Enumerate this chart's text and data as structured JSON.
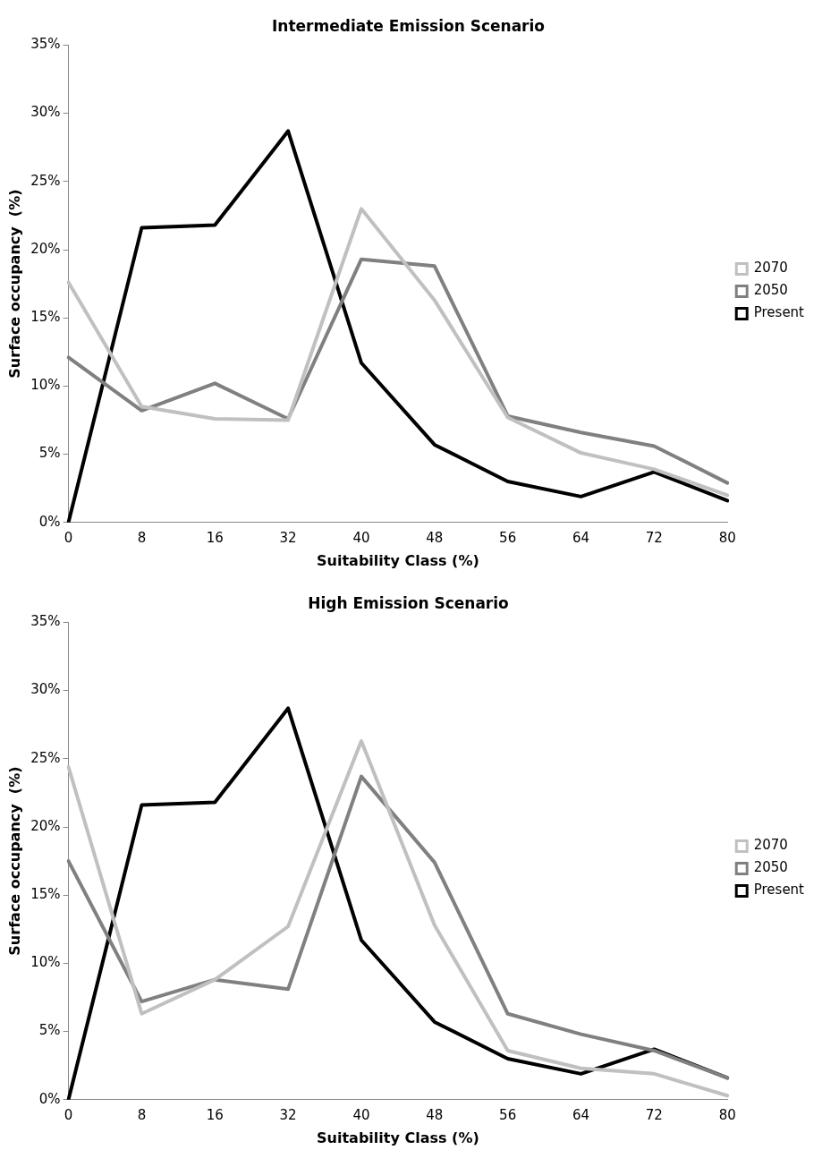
{
  "chart_data": [
    {
      "type": "line",
      "title": "Intermediate Emission Scenario",
      "xlabel": "Suitability Class (%)",
      "ylabel": "Surface occupancy  (%)",
      "categories": [
        "0",
        "8",
        "16",
        "32",
        "40",
        "48",
        "56",
        "64",
        "72",
        "80"
      ],
      "series": [
        {
          "name": "2070",
          "color": "#c0c0c0",
          "values": [
            17.6,
            8.5,
            7.6,
            7.5,
            23.0,
            16.3,
            7.7,
            5.1,
            3.9,
            2.0
          ]
        },
        {
          "name": "2050",
          "color": "#808080",
          "values": [
            12.1,
            8.2,
            10.2,
            7.6,
            19.3,
            18.8,
            7.8,
            6.6,
            5.6,
            2.9
          ]
        },
        {
          "name": "Present",
          "color": "#000000",
          "values": [
            0,
            21.6,
            21.8,
            28.7,
            11.7,
            5.7,
            3.0,
            1.9,
            3.7,
            1.6
          ]
        }
      ],
      "ylim": [
        0,
        35
      ],
      "yticks": [
        {
          "value": 0,
          "label": "0%"
        },
        {
          "value": 5,
          "label": "5%"
        },
        {
          "value": 10,
          "label": "10%"
        },
        {
          "value": 15,
          "label": "15%"
        },
        {
          "value": 20,
          "label": "20%"
        },
        {
          "value": 25,
          "label": "25%"
        },
        {
          "value": 30,
          "label": "30%"
        },
        {
          "value": 35,
          "label": "35%"
        }
      ],
      "grid": false,
      "legend": "right",
      "marker": "none",
      "line_style": "solid"
    },
    {
      "type": "line",
      "title": "High Emission Scenario",
      "xlabel": "Suitability Class (%)",
      "ylabel": "Surface occupancy  (%)",
      "categories": [
        "0",
        "8",
        "16",
        "32",
        "40",
        "48",
        "56",
        "64",
        "72",
        "80"
      ],
      "series": [
        {
          "name": "2070",
          "color": "#c0c0c0",
          "values": [
            24.4,
            6.3,
            8.8,
            12.7,
            26.3,
            12.8,
            3.6,
            2.3,
            1.9,
            0.3
          ]
        },
        {
          "name": "2050",
          "color": "#808080",
          "values": [
            17.5,
            7.2,
            8.8,
            8.1,
            23.7,
            17.4,
            6.3,
            4.8,
            3.6,
            1.6
          ]
        },
        {
          "name": "Present",
          "color": "#000000",
          "values": [
            0,
            21.6,
            21.8,
            28.7,
            11.7,
            5.7,
            3.0,
            1.9,
            3.7,
            1.6
          ]
        }
      ],
      "ylim": [
        0,
        35
      ],
      "yticks": [
        {
          "value": 0,
          "label": "0%"
        },
        {
          "value": 5,
          "label": "5%"
        },
        {
          "value": 10,
          "label": "10%"
        },
        {
          "value": 15,
          "label": "15%"
        },
        {
          "value": 20,
          "label": "20%"
        },
        {
          "value": 25,
          "label": "25%"
        },
        {
          "value": 30,
          "label": "30%"
        },
        {
          "value": 35,
          "label": "35%"
        }
      ],
      "grid": false,
      "legend": "right",
      "marker": "none",
      "line_style": "solid"
    }
  ]
}
